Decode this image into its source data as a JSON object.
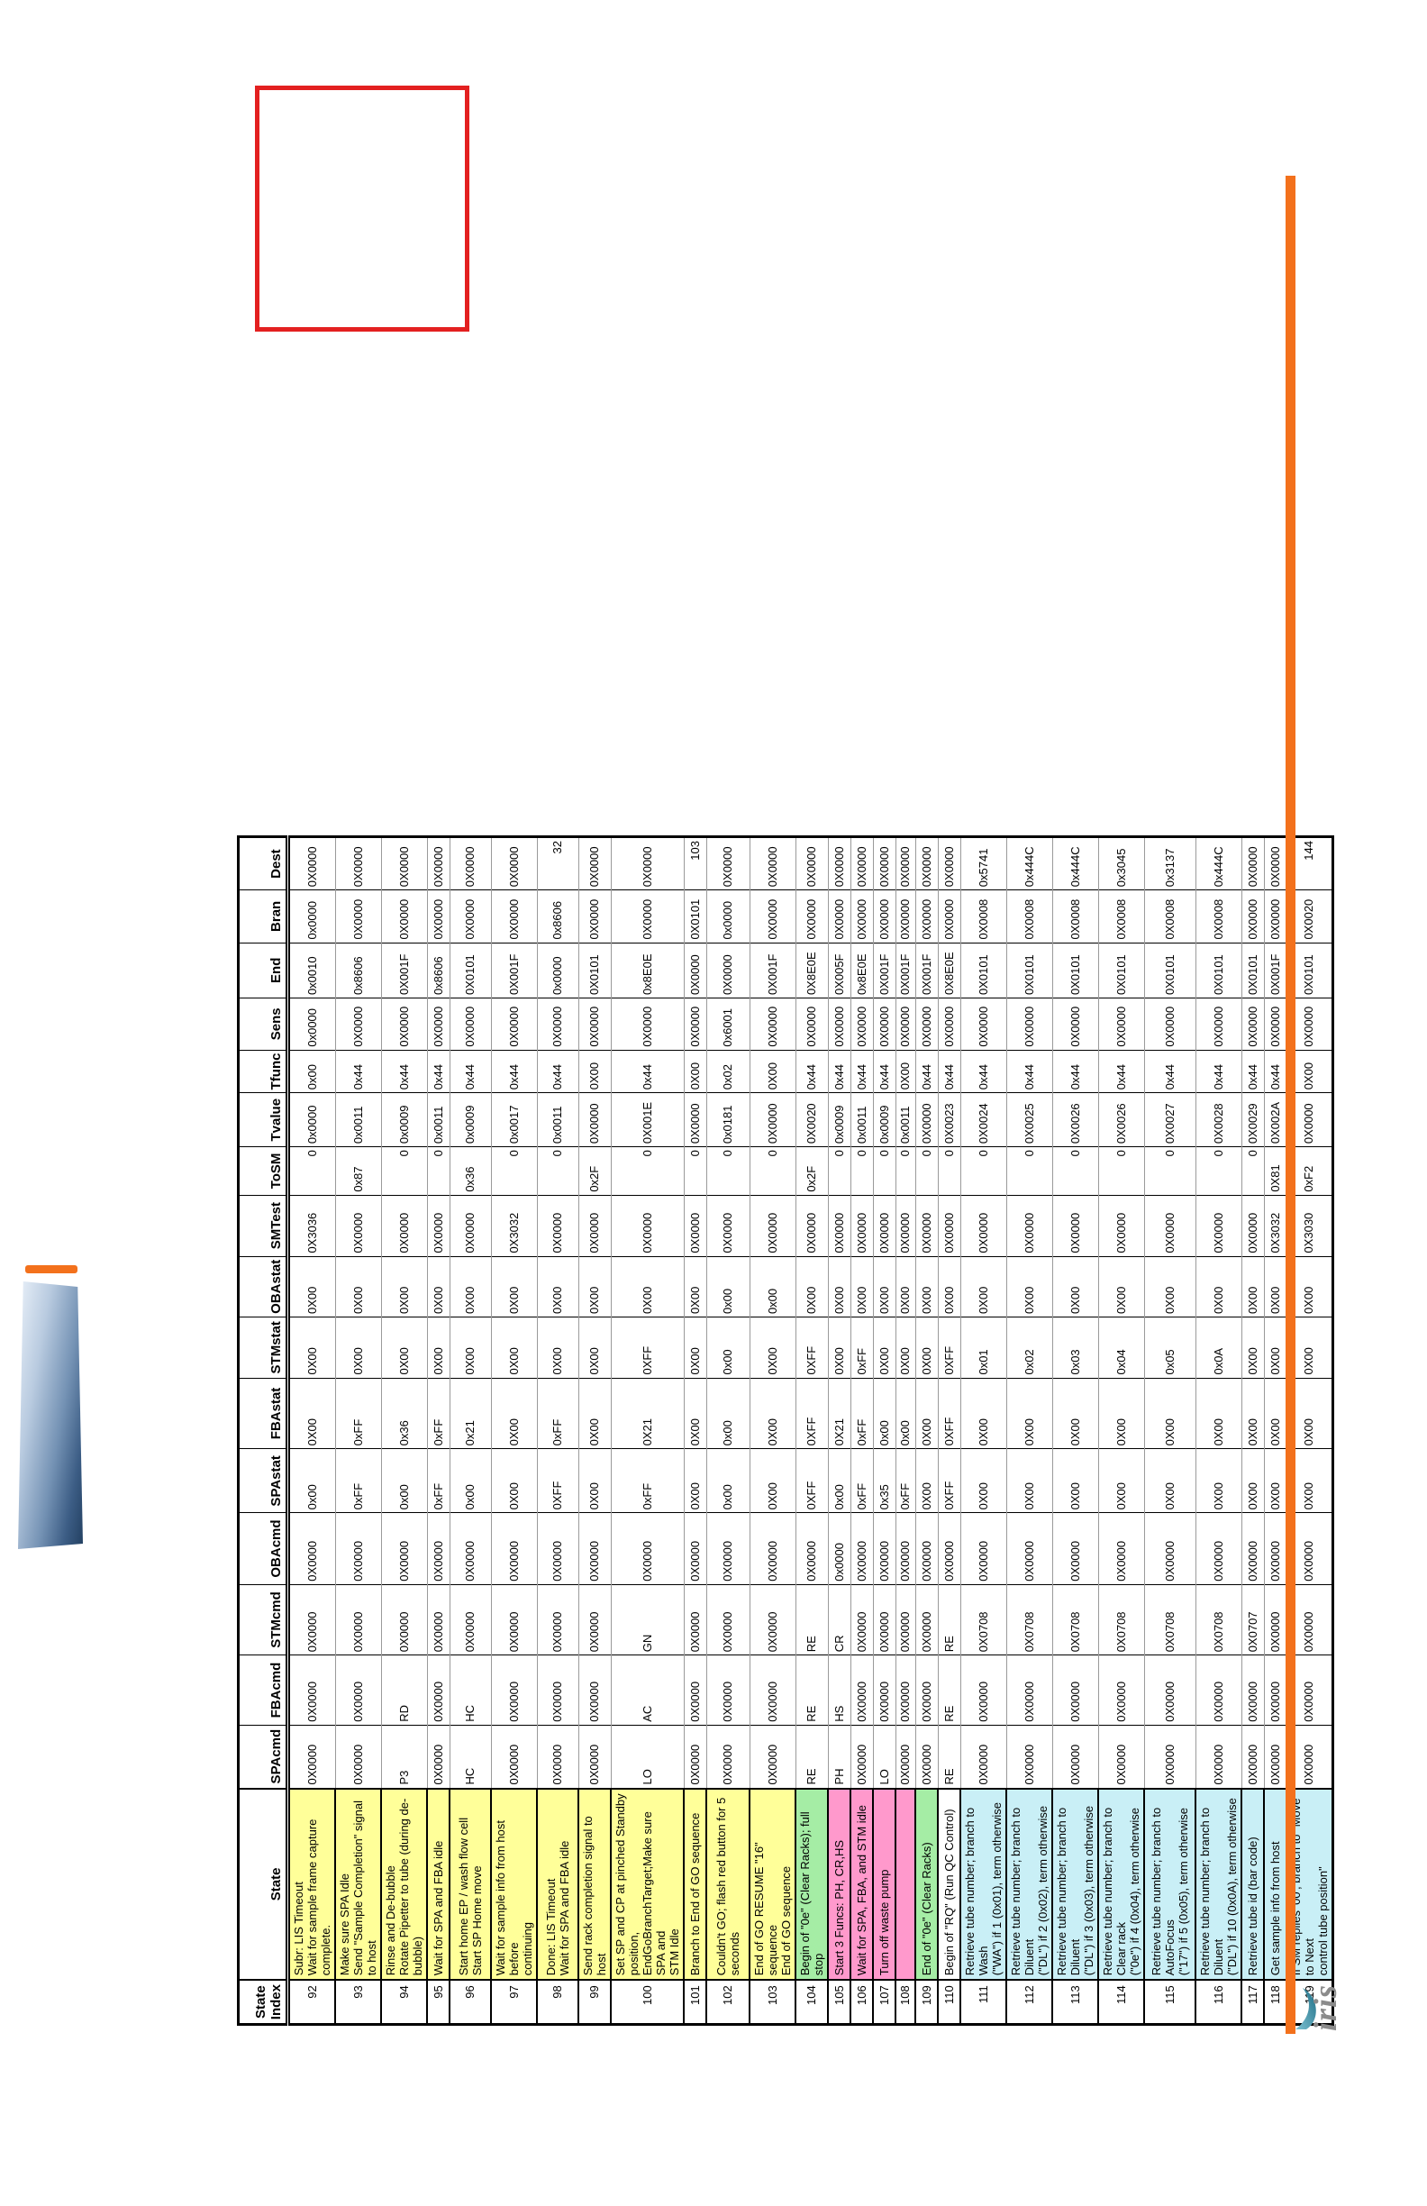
{
  "decorations": {
    "logo_text": "iris",
    "colors": {
      "yellow": "#FFFF99",
      "green": "#A5EDA5",
      "pink": "#FF99CC",
      "cyan": "#C9EFF6",
      "white": "#FFFFFF",
      "red_box_border": "#E32020",
      "orange_rule": "#F3711C"
    }
  },
  "table": {
    "columns": [
      {
        "key": "idx",
        "label": "State\nIndex"
      },
      {
        "key": "state",
        "label": "State"
      },
      {
        "key": "spacmd",
        "label": "SPAcmd"
      },
      {
        "key": "fbacmd",
        "label": "FBAcmd"
      },
      {
        "key": "stmcmd",
        "label": "STMcmd"
      },
      {
        "key": "obacmd",
        "label": "OBAcmd"
      },
      {
        "key": "spastat",
        "label": "SPAstat"
      },
      {
        "key": "fbastat",
        "label": "FBAstat"
      },
      {
        "key": "stmstat",
        "label": "STMstat"
      },
      {
        "key": "obastat",
        "label": "OBAstat"
      },
      {
        "key": "smtest",
        "label": "SMTest"
      },
      {
        "key": "tosm",
        "label": "ToSM"
      },
      {
        "key": "tvalue",
        "label": "Tvalue"
      },
      {
        "key": "tfunc",
        "label": "Tfunc"
      },
      {
        "key": "sens",
        "label": "Sens"
      },
      {
        "key": "end",
        "label": "End"
      },
      {
        "key": "bran",
        "label": "Bran"
      },
      {
        "key": "dest",
        "label": "Dest"
      }
    ],
    "records": [
      {
        "idx": "92",
        "bg": "yellow",
        "state": "Subr: LIS Timeout\nWait for sample frame capture complete.",
        "spacmd": "0X0000",
        "fbacmd": "0X0000",
        "stmcmd": "0X0000",
        "obacmd": "0X0000",
        "spastat": "0x00",
        "fbastat": "0X00",
        "stmstat": "0X00",
        "obastat": "0X00",
        "smtest": "0X3036",
        "tosm": "0",
        "tvalue": "0x0000",
        "tfunc": "0x00",
        "sens": "0x0000",
        "end": "0x0010",
        "bran": "0x0000",
        "dest": "0X0000"
      },
      {
        "idx": "93",
        "bg": "yellow",
        "state": "Make sure SPA Idle\nSend \"Sample Completion\" signal to host",
        "spacmd": "0X0000",
        "fbacmd": "0X0000",
        "stmcmd": "0X0000",
        "obacmd": "0X0000",
        "spastat": "0xFF",
        "fbastat": "0xFF",
        "stmstat": "0X00",
        "obastat": "0X00",
        "smtest": "0X0000",
        "tosm": "0x87",
        "tvalue": "0x0011",
        "tfunc": "0x44",
        "sens": "0X0000",
        "end": "0x8606",
        "bran": "0X0000",
        "dest": "0X0000"
      },
      {
        "idx": "94",
        "bg": "yellow",
        "state": "Rinse and De-bubble\nRotate Pipetter to tube (during de-bubble)",
        "spacmd": "P3",
        "fbacmd": "RD",
        "stmcmd": "0X0000",
        "obacmd": "0X0000",
        "spastat": "0x00",
        "fbastat": "0x36",
        "stmstat": "0X00",
        "obastat": "0X00",
        "smtest": "0X0000",
        "tosm": "0",
        "tvalue": "0x0009",
        "tfunc": "0x44",
        "sens": "0X0000",
        "end": "0X001F",
        "bran": "0X0000",
        "dest": "0X0000"
      },
      {
        "idx": "95",
        "bg": "yellow",
        "state": "Wait for SPA and FBA idle",
        "spacmd": "0X0000",
        "fbacmd": "0X0000",
        "stmcmd": "0X0000",
        "obacmd": "0X0000",
        "spastat": "0xFF",
        "fbastat": "0xFF",
        "stmstat": "0X00",
        "obastat": "0X00",
        "smtest": "0X0000",
        "tosm": "0",
        "tvalue": "0x0011",
        "tfunc": "0x44",
        "sens": "0X0000",
        "end": "0x8606",
        "bran": "0X0000",
        "dest": "0X0000"
      },
      {
        "idx": "96",
        "bg": "yellow",
        "state": "Start home EP / wash flow cell\nStart SP Home move",
        "spacmd": "HC",
        "fbacmd": "HC",
        "stmcmd": "0X0000",
        "obacmd": "0X0000",
        "spastat": "0x00",
        "fbastat": "0x21",
        "stmstat": "0X00",
        "obastat": "0X00",
        "smtest": "0X0000",
        "tosm": "0x36",
        "tvalue": "0x0009",
        "tfunc": "0x44",
        "sens": "0X0000",
        "end": "0X0101",
        "bran": "0X0000",
        "dest": "0X0000"
      },
      {
        "idx": "97",
        "bg": "yellow",
        "state": "Wait for sample info from host before\ncontinuing",
        "spacmd": "0X0000",
        "fbacmd": "0X0000",
        "stmcmd": "0X0000",
        "obacmd": "0X0000",
        "spastat": "0X00",
        "fbastat": "0X00",
        "stmstat": "0X00",
        "obastat": "0X00",
        "smtest": "0X3032",
        "tosm": "0",
        "tvalue": "0x0017",
        "tfunc": "0x44",
        "sens": "0X0000",
        "end": "0X001F",
        "bran": "0X0000",
        "dest": "0X0000"
      },
      {
        "idx": "98",
        "bg": "yellow",
        "state": "Done: LIS Timeout\nWait for SPA and FBA idle",
        "spacmd": "0X0000",
        "fbacmd": "0X0000",
        "stmcmd": "0X0000",
        "obacmd": "0X0000",
        "spastat": "0XFF",
        "fbastat": "0xFF",
        "stmstat": "0X00",
        "obastat": "0X00",
        "smtest": "0X0000",
        "tosm": "0",
        "tvalue": "0x0011",
        "tfunc": "0x44",
        "sens": "0X0000",
        "end": "0x0000",
        "bran": "0x8606",
        "dest": "32"
      },
      {
        "idx": "99",
        "bg": "yellow",
        "state": "Send rack completion signal to host",
        "spacmd": "0X0000",
        "fbacmd": "0X0000",
        "stmcmd": "0X0000",
        "obacmd": "0X0000",
        "spastat": "0X00",
        "fbastat": "0X00",
        "stmstat": "0X00",
        "obastat": "0X00",
        "smtest": "0X0000",
        "tosm": "0x2F",
        "tvalue": "0X0000",
        "tfunc": "0X00",
        "sens": "0X0000",
        "end": "0X0101",
        "bran": "0X0000",
        "dest": "0X0000"
      },
      {
        "idx": "100",
        "bg": "yellow",
        "state": "Set SP and CP at pinched Standby position,\nEndGoBranchTarget;Make sure SPA and\nSTM Idle",
        "spacmd": "LO",
        "fbacmd": "AC",
        "stmcmd": "GN",
        "obacmd": "0X0000",
        "spastat": "0xFF",
        "fbastat": "0X21",
        "stmstat": "0XFF",
        "obastat": "0X00",
        "smtest": "0X0000",
        "tosm": "0",
        "tvalue": "0X001E",
        "tfunc": "0x44",
        "sens": "0X0000",
        "end": "0x8E0E",
        "bran": "0X0000",
        "dest": "0X0000"
      },
      {
        "idx": "101",
        "bg": "yellow",
        "state": "Branch to End of GO sequence",
        "spacmd": "0X0000",
        "fbacmd": "0X0000",
        "stmcmd": "0X0000",
        "obacmd": "0X0000",
        "spastat": "0X00",
        "fbastat": "0X00",
        "stmstat": "0X00",
        "obastat": "0X00",
        "smtest": "0X0000",
        "tosm": "0",
        "tvalue": "0X0000",
        "tfunc": "0X00",
        "sens": "0X0000",
        "end": "0X0000",
        "bran": "0X0101",
        "dest": "103"
      },
      {
        "idx": "102",
        "bg": "yellow",
        "state": "Couldn't GO; flash red button for 5 seconds",
        "spacmd": "0X0000",
        "fbacmd": "0X0000",
        "stmcmd": "0X0000",
        "obacmd": "0X0000",
        "spastat": "0x00",
        "fbastat": "0x00",
        "stmstat": "0x00",
        "obastat": "0x00",
        "smtest": "0X0000",
        "tosm": "0",
        "tvalue": "0x0181",
        "tfunc": "0x02",
        "sens": "0x6001",
        "end": "0X0000",
        "bran": "0x0000",
        "dest": "0X0000"
      },
      {
        "idx": "103",
        "bg": "yellow",
        "state": "End of GO RESUME \"16\" sequence\nEnd of GO sequence",
        "spacmd": "0X0000",
        "fbacmd": "0X0000",
        "stmcmd": "0X0000",
        "obacmd": "0X0000",
        "spastat": "0X00",
        "fbastat": "0X00",
        "stmstat": "0X00",
        "obastat": "0x00",
        "smtest": "0X0000",
        "tosm": "0",
        "tvalue": "0X0000",
        "tfunc": "0X00",
        "sens": "0X0000",
        "end": "0X001F",
        "bran": "0X0000",
        "dest": "0X0000"
      },
      {
        "idx": "104",
        "bg": "green",
        "state": "Begin of \"0e\" (Clear Racks); full stop",
        "spacmd": "RE",
        "fbacmd": "RE",
        "stmcmd": "RE",
        "obacmd": "0X0000",
        "spastat": "0XFF",
        "fbastat": "0XFF",
        "stmstat": "0XFF",
        "obastat": "0X00",
        "smtest": "0X0000",
        "tosm": "0x2F",
        "tvalue": "0X0020",
        "tfunc": "0x44",
        "sens": "0X0000",
        "end": "0X8E0E",
        "bran": "0X0000",
        "dest": "0X0000"
      },
      {
        "idx": "105",
        "bg": "pink",
        "state": "Start 3 Funcs: PH, CR,HS",
        "spacmd": "PH",
        "fbacmd": "HS",
        "stmcmd": "CR",
        "obacmd": "0x0000",
        "spastat": "0x00",
        "fbastat": "0X21",
        "stmstat": "0X00",
        "obastat": "0X00",
        "smtest": "0X0000",
        "tosm": "0",
        "tvalue": "0x0009",
        "tfunc": "0x44",
        "sens": "0X0000",
        "end": "0X005F",
        "bran": "0X0000",
        "dest": "0X0000"
      },
      {
        "idx": "106",
        "bg": "pink",
        "state": "Wait for SPA, FBA, and STM idle",
        "spacmd": "0X0000",
        "fbacmd": "0X0000",
        "stmcmd": "0X0000",
        "obacmd": "0X0000",
        "spastat": "0xFF",
        "fbastat": "0xFF",
        "stmstat": "0xFF",
        "obastat": "0X00",
        "smtest": "0X0000",
        "tosm": "0",
        "tvalue": "0x0011",
        "tfunc": "0x44",
        "sens": "0X0000",
        "end": "0x8E0E",
        "bran": "0X0000",
        "dest": "0X0000"
      },
      {
        "idx": "107",
        "bg": "pink",
        "state": "Turn off waste pump",
        "spacmd": "LO",
        "fbacmd": "0X0000",
        "stmcmd": "0X0000",
        "obacmd": "0X0000",
        "spastat": "0x35",
        "fbastat": "0x00",
        "stmstat": "0X00",
        "obastat": "0X00",
        "smtest": "0X0000",
        "tosm": "0",
        "tvalue": "0x0009",
        "tfunc": "0x44",
        "sens": "0X0000",
        "end": "0X001F",
        "bran": "0X0000",
        "dest": "0X0000"
      },
      {
        "idx": "108",
        "bg": "pink",
        "state": "",
        "spacmd": "0X0000",
        "fbacmd": "0X0000",
        "stmcmd": "0X0000",
        "obacmd": "0X0000",
        "spastat": "0xFF",
        "fbastat": "0x00",
        "stmstat": "0X00",
        "obastat": "0X00",
        "smtest": "0X0000",
        "tosm": "0",
        "tvalue": "0x0011",
        "tfunc": "0X00",
        "sens": "0X0000",
        "end": "0X001F",
        "bran": "0X0000",
        "dest": "0X0000"
      },
      {
        "idx": "109",
        "bg": "green",
        "state": "End of \"0e\" (Clear Racks)",
        "spacmd": "0X0000",
        "fbacmd": "0X0000",
        "stmcmd": "0X0000",
        "obacmd": "0X0000",
        "spastat": "0X00",
        "fbastat": "0X00",
        "stmstat": "0X00",
        "obastat": "0X00",
        "smtest": "0X0000",
        "tosm": "0",
        "tvalue": "0X0000",
        "tfunc": "0x44",
        "sens": "0X0000",
        "end": "0X001F",
        "bran": "0X0000",
        "dest": "0X0000"
      },
      {
        "idx": "110",
        "bg": "white",
        "state": "Begin of \"RQ\" (Run QC Control)",
        "spacmd": "RE",
        "fbacmd": "RE",
        "stmcmd": "RE",
        "obacmd": "0X0000",
        "spastat": "0XFF",
        "fbastat": "0XFF",
        "stmstat": "0XFF",
        "obastat": "0X00",
        "smtest": "0X0000",
        "tosm": "0",
        "tvalue": "0X0023",
        "tfunc": "0x44",
        "sens": "0X0000",
        "end": "0X8E0E",
        "bran": "0X0000",
        "dest": "0X0000"
      },
      {
        "idx": "111",
        "bg": "cyan",
        "state": "Retrieve tube number; branch to Wash\n(\"WA\") if 1 (0x01), term otherwise",
        "spacmd": "0X0000",
        "fbacmd": "0X0000",
        "stmcmd": "0X0708",
        "obacmd": "0X0000",
        "spastat": "0X00",
        "fbastat": "0X00",
        "stmstat": "0x01",
        "obastat": "0X00",
        "smtest": "0X0000",
        "tosm": "0",
        "tvalue": "0X0024",
        "tfunc": "0x44",
        "sens": "0X0000",
        "end": "0X0101",
        "bran": "0X0008",
        "dest": "0x5741"
      },
      {
        "idx": "112",
        "bg": "cyan",
        "state": "Retrieve tube number; branch to Diluent\n(\"DL\") if 2 (0x02), term otherwise",
        "spacmd": "0X0000",
        "fbacmd": "0X0000",
        "stmcmd": "0X0708",
        "obacmd": "0X0000",
        "spastat": "0X00",
        "fbastat": "0X00",
        "stmstat": "0x02",
        "obastat": "0X00",
        "smtest": "0X0000",
        "tosm": "0",
        "tvalue": "0X0025",
        "tfunc": "0x44",
        "sens": "0X0000",
        "end": "0X0101",
        "bran": "0X0008",
        "dest": "0x444C"
      },
      {
        "idx": "113",
        "bg": "cyan",
        "state": "Retrieve tube number; branch to Diluent\n(\"DL\") if 3 (0x03), term otherwise",
        "spacmd": "0X0000",
        "fbacmd": "0X0000",
        "stmcmd": "0X0708",
        "obacmd": "0X0000",
        "spastat": "0X00",
        "fbastat": "0X00",
        "stmstat": "0x03",
        "obastat": "0X00",
        "smtest": "0X0000",
        "tosm": "0",
        "tvalue": "0X0026",
        "tfunc": "0x44",
        "sens": "0X0000",
        "end": "0X0101",
        "bran": "0X0008",
        "dest": "0x444C"
      },
      {
        "idx": "114",
        "bg": "cyan",
        "state": "Retrieve tube number; branch to Clear rack\n(\"0e\") if 4 (0x04), term otherwise",
        "spacmd": "0X0000",
        "fbacmd": "0X0000",
        "stmcmd": "0X0708",
        "obacmd": "0X0000",
        "spastat": "0X00",
        "fbastat": "0X00",
        "stmstat": "0x04",
        "obastat": "0X00",
        "smtest": "0X0000",
        "tosm": "0",
        "tvalue": "0X0026",
        "tfunc": "0x44",
        "sens": "0X0000",
        "end": "0X0101",
        "bran": "0X0008",
        "dest": "0x3045"
      },
      {
        "idx": "115",
        "bg": "cyan",
        "state": "Retrieve tube number; branch to AutoFocus\n(\"17\") if 5 (0x05), term otherwise",
        "spacmd": "0X0000",
        "fbacmd": "0X0000",
        "stmcmd": "0X0708",
        "obacmd": "0X0000",
        "spastat": "0X00",
        "fbastat": "0X00",
        "stmstat": "0x05",
        "obastat": "0X00",
        "smtest": "0X0000",
        "tosm": "0",
        "tvalue": "0X0027",
        "tfunc": "0x44",
        "sens": "0X0000",
        "end": "0X0101",
        "bran": "0X0008",
        "dest": "0x3137"
      },
      {
        "idx": "116",
        "bg": "cyan",
        "state": "Retrieve tube number; branch to Diluent\n(\"DL\") if 10 (0x0A), term otherwise",
        "spacmd": "0X0000",
        "fbacmd": "0X0000",
        "stmcmd": "0X0708",
        "obacmd": "0X0000",
        "spastat": "0X00",
        "fbastat": "0X00",
        "stmstat": "0x0A",
        "obastat": "0X00",
        "smtest": "0X0000",
        "tosm": "0",
        "tvalue": "0X0028",
        "tfunc": "0x44",
        "sens": "0X0000",
        "end": "0X0101",
        "bran": "0X0008",
        "dest": "0x444C"
      },
      {
        "idx": "117",
        "bg": "cyan",
        "state": "Retrieve tube id (bar code)",
        "spacmd": "0X0000",
        "fbacmd": "0X0000",
        "stmcmd": "0X0707",
        "obacmd": "0X0000",
        "spastat": "0X00",
        "fbastat": "0X00",
        "stmstat": "0X00",
        "obastat": "0X00",
        "smtest": "0X0000",
        "tosm": "0",
        "tvalue": "0X0029",
        "tfunc": "0x44",
        "sens": "0X0000",
        "end": "0X0101",
        "bran": "0X0000",
        "dest": "0X0000"
      },
      {
        "idx": "118",
        "bg": "cyan",
        "state": "Get sample info from host",
        "spacmd": "0X0000",
        "fbacmd": "0X0000",
        "stmcmd": "0X0000",
        "obacmd": "0X0000",
        "spastat": "0X00",
        "fbastat": "0X00",
        "stmstat": "0X00",
        "obastat": "0X00",
        "smtest": "0X3032",
        "tosm": "0X81",
        "tvalue": "0X002A",
        "tfunc": "0x44",
        "sens": "0X0000",
        "end": "0X001F",
        "bran": "0X0000",
        "dest": "0X0000"
      },
      {
        "idx": "119",
        "bg": "cyan",
        "state": "If SM replies '00', branch to \"Move to Next\ncontrol tube position\"",
        "spacmd": "0X0000",
        "fbacmd": "0X0000",
        "stmcmd": "0X0000",
        "obacmd": "0X0000",
        "spastat": "0X00",
        "fbastat": "0X00",
        "stmstat": "0X00",
        "obastat": "0X00",
        "smtest": "0X3030",
        "tosm": "0xF2",
        "tvalue": "0X0000",
        "tfunc": "0X00",
        "sens": "0X0000",
        "end": "0X0101",
        "bran": "0X0020",
        "dest": "144"
      }
    ]
  }
}
